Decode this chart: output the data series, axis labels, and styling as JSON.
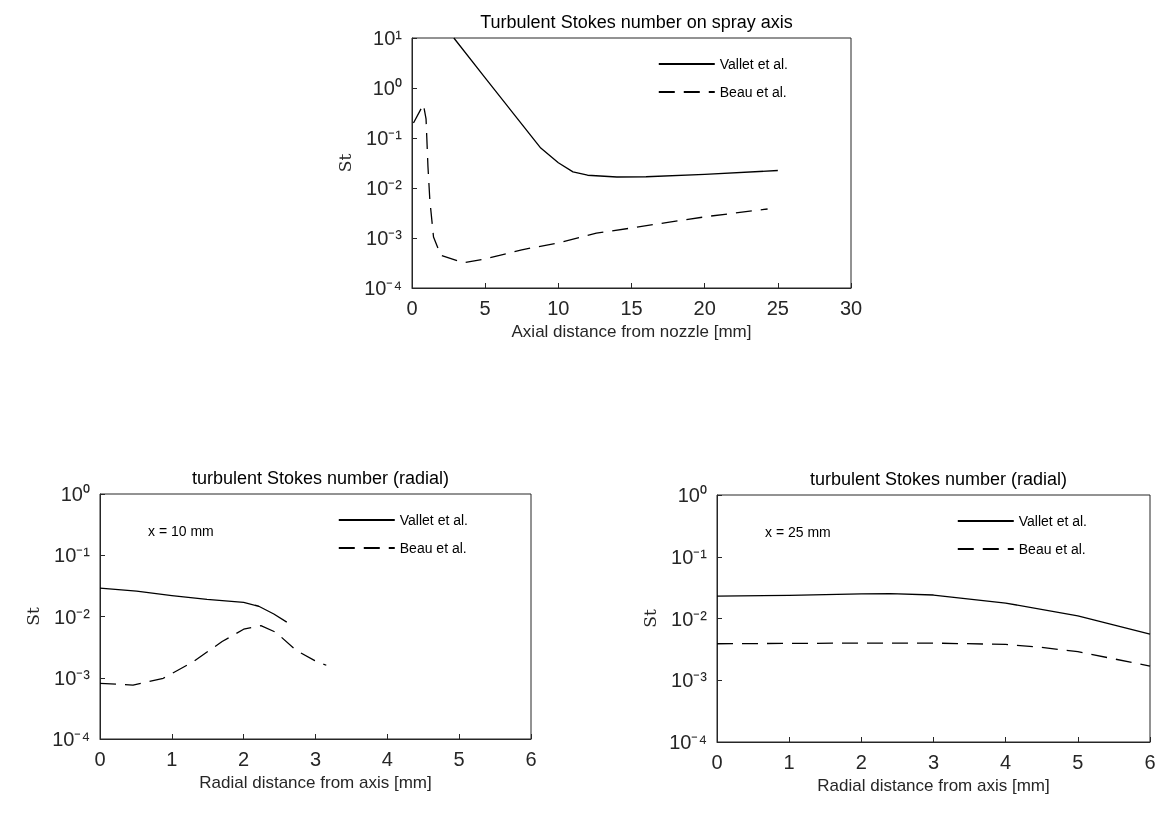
{
  "chart_data": [
    {
      "type": "line",
      "title": "Turbulent Stokes number on spray axis",
      "xlabel": "Axial distance from nozzle [mm]",
      "ylabel": "St",
      "log": "y",
      "grid": false,
      "legend": "top right",
      "marker": "none",
      "xlim": [
        0,
        30
      ],
      "xticks": [
        0,
        5,
        10,
        15,
        20,
        25,
        30
      ],
      "ylim": [
        0.0001,
        10
      ],
      "yticks": [
        {
          "value": 0.0001,
          "label": "10⁻⁴"
        },
        {
          "value": 0.001,
          "label": "10⁻³"
        },
        {
          "value": 0.01,
          "label": "10⁻²"
        },
        {
          "value": 0.1,
          "label": "10⁻¹"
        },
        {
          "value": 1,
          "label": "10⁰"
        },
        {
          "value": 10,
          "label": "10¹"
        }
      ],
      "series": [
        {
          "name": "Vallet et al.",
          "color": "#000000",
          "line_style": "solid",
          "x": [
            2.86,
            5,
            7,
            8.8,
            10,
            11,
            12,
            14,
            16,
            20,
            25
          ],
          "values": [
            10,
            1.6,
            0.29,
            0.063,
            0.032,
            0.021,
            0.018,
            0.0166,
            0.0168,
            0.0187,
            0.0224
          ]
        },
        {
          "name": "Beau et al.",
          "color": "#000000",
          "line_style": "dashed",
          "x": [
            0.1,
            0.78,
            0.96,
            1.09,
            1.22,
            1.47,
            1.97,
            3.49,
            5,
            7.5,
            10.1,
            12.6,
            15.1,
            17.7,
            20.2,
            24.3
          ],
          "values": [
            0.2,
            0.47,
            0.24,
            0.027,
            0.0057,
            0.00105,
            0.00045,
            0.00032,
            0.00038,
            0.00058,
            0.00081,
            0.00125,
            0.0016,
            0.0021,
            0.0027,
            0.0038
          ]
        }
      ]
    },
    {
      "type": "line",
      "title": "turbulent Stokes number (radial)",
      "xlabel": "Radial distance from axis [mm]",
      "ylabel": "St",
      "log": "y",
      "grid": false,
      "legend": "top right",
      "marker": "none",
      "annotations": [
        "x = 10 mm"
      ],
      "xlim": [
        0,
        6
      ],
      "xticks": [
        0,
        1,
        2,
        3,
        4,
        5,
        6
      ],
      "ylim": [
        0.0001,
        1
      ],
      "yticks": [
        {
          "value": 0.0001,
          "label": "10⁻⁴"
        },
        {
          "value": 0.001,
          "label": "10⁻³"
        },
        {
          "value": 0.01,
          "label": "10⁻²"
        },
        {
          "value": 0.1,
          "label": "10⁻¹"
        },
        {
          "value": 1,
          "label": "10⁰"
        }
      ],
      "series": [
        {
          "name": "Vallet et al.",
          "color": "#000000",
          "line_style": "solid",
          "x": [
            0,
            0.51,
            1,
            1.49,
            2,
            2.21,
            2.42,
            2.6
          ],
          "values": [
            0.029,
            0.026,
            0.022,
            0.019,
            0.017,
            0.0147,
            0.011,
            0.0081
          ]
        },
        {
          "name": "Beau et al.",
          "color": "#000000",
          "line_style": "dashed",
          "x": [
            0,
            0.46,
            0.88,
            1.29,
            1.7,
            2,
            2.24,
            2.45,
            2.73,
            2.99,
            3.15
          ],
          "values": [
            0.00081,
            0.00076,
            0.00098,
            0.0018,
            0.0039,
            0.0062,
            0.0071,
            0.0055,
            0.0028,
            0.0019,
            0.0016
          ]
        }
      ]
    },
    {
      "type": "line",
      "title": "turbulent Stokes number (radial)",
      "xlabel": "Radial distance from axis [mm]",
      "ylabel": "St",
      "log": "y",
      "grid": false,
      "legend": "top right",
      "marker": "none",
      "annotations": [
        "x = 25 mm"
      ],
      "xlim": [
        0,
        6
      ],
      "xticks": [
        0,
        1,
        2,
        3,
        4,
        5,
        6
      ],
      "ylim": [
        0.0001,
        1
      ],
      "yticks": [
        {
          "value": 0.0001,
          "label": "10⁻⁴"
        },
        {
          "value": 0.001,
          "label": "10⁻³"
        },
        {
          "value": 0.01,
          "label": "10⁻²"
        },
        {
          "value": 0.1,
          "label": "10⁻¹"
        },
        {
          "value": 1,
          "label": "10⁰"
        }
      ],
      "series": [
        {
          "name": "Vallet et al.",
          "color": "#000000",
          "line_style": "solid",
          "x": [
            0,
            1,
            2,
            2.4,
            3,
            4,
            5,
            6
          ],
          "values": [
            0.023,
            0.0237,
            0.025,
            0.0253,
            0.024,
            0.0178,
            0.011,
            0.0056
          ]
        },
        {
          "name": "Beau et al.",
          "color": "#000000",
          "line_style": "dashed",
          "x": [
            0,
            2,
            3,
            4,
            4.5,
            5,
            6
          ],
          "values": [
            0.0039,
            0.004,
            0.004,
            0.0038,
            0.0034,
            0.0029,
            0.0017
          ]
        }
      ]
    }
  ]
}
